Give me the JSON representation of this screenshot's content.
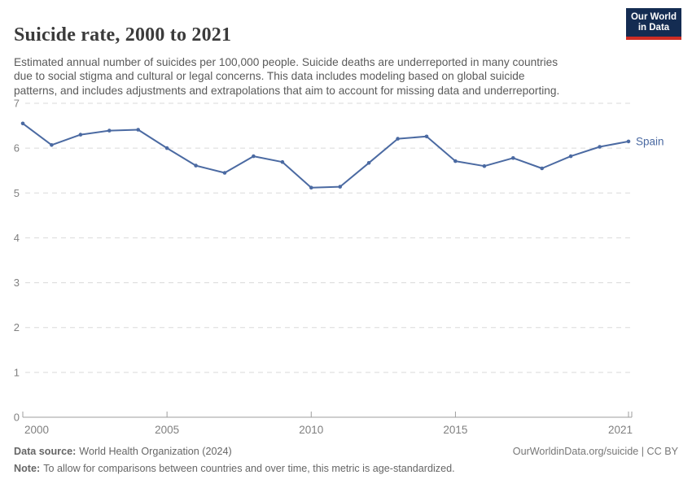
{
  "header": {
    "title": "Suicide rate, 2000 to 2021",
    "subtitle_lines": [
      "Estimated annual number of suicides per 100,000 people. Suicide deaths are underreported in many countries",
      "due to social stigma and cultural or legal concerns. This data includes modeling based on global suicide",
      "patterns, and includes adjustments and extrapolations that aim to account for missing data and underreporting."
    ],
    "logo": {
      "line1": "Our World",
      "line2": "in Data"
    }
  },
  "chart_data": {
    "type": "line",
    "title": "Suicide rate, 2000 to 2021",
    "xlabel": "",
    "ylabel": "",
    "x": [
      2000,
      2001,
      2002,
      2003,
      2004,
      2005,
      2006,
      2007,
      2008,
      2009,
      2010,
      2011,
      2012,
      2013,
      2014,
      2015,
      2016,
      2017,
      2018,
      2019,
      2020,
      2021
    ],
    "series": [
      {
        "name": "Spain",
        "color": "#4b6aa2",
        "values": [
          6.55,
          6.07,
          6.3,
          6.39,
          6.41,
          6.0,
          5.61,
          5.45,
          5.82,
          5.69,
          5.12,
          5.14,
          5.67,
          6.21,
          6.26,
          5.71,
          5.6,
          5.78,
          5.55,
          5.82,
          6.03,
          6.15
        ]
      }
    ],
    "xlim": [
      2000,
      2021
    ],
    "ylim": [
      0,
      7
    ],
    "x_tick_years": [
      2000,
      2005,
      2010,
      2015,
      2021
    ],
    "y_ticks": [
      0,
      1,
      2,
      3,
      4,
      5,
      6,
      7
    ],
    "grid": "horizontal-dashed",
    "legend_position": "end-of-line-label",
    "end_label": "Spain"
  },
  "colors": {
    "series": "#4b6aa2",
    "grid": "#dadada",
    "axis": "#9e9e9e",
    "tick_label": "#808080",
    "title": "#3b3b3b",
    "subtitle": "#5a5a5a",
    "footer": "#666666",
    "logo_bg": "#142c52",
    "logo_accent": "#cf2d24"
  },
  "footer": {
    "datasource_label": "Data source:",
    "datasource_value": "World Health Organization (2024)",
    "attribution": "OurWorldinData.org/suicide | CC BY",
    "note_label": "Note:",
    "note_value": "To allow for comparisons between countries and over time, this metric is age-standardized."
  }
}
